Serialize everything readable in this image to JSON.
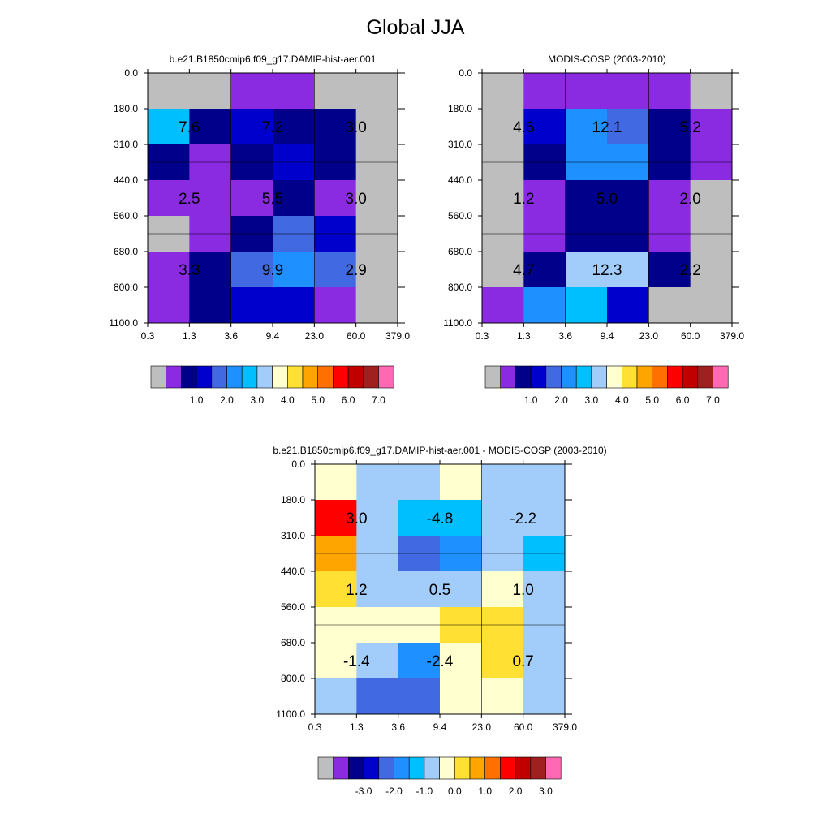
{
  "figure": {
    "title": "Global JJA"
  },
  "chart_data": [
    {
      "type": "heatmap",
      "title": "b.e21.B1850cmip6.f09_g17.DAMIP-hist-aer.001",
      "x_ticks": [
        "0.3",
        "1.3",
        "3.6",
        "9.4",
        "23.0",
        "60.0",
        "379.0"
      ],
      "y_ticks": [
        "0.0",
        "180.0",
        "310.0",
        "440.0",
        "560.0",
        "680.0",
        "800.0",
        "1100.0"
      ],
      "cell_color_index": [
        [
          0,
          0,
          1,
          1,
          0,
          0
        ],
        [
          6,
          2,
          3,
          2,
          2,
          0
        ],
        [
          2,
          1,
          2,
          3,
          2,
          0
        ],
        [
          1,
          1,
          1,
          2,
          1,
          0
        ],
        [
          0,
          1,
          2,
          4,
          3,
          0
        ],
        [
          1,
          2,
          4,
          5,
          4,
          0
        ],
        [
          1,
          2,
          3,
          3,
          1,
          0
        ]
      ],
      "block_labels": [
        "7.6",
        "7.2",
        "3.0",
        "2.5",
        "5.5",
        "3.0",
        "3.3",
        "9.9",
        "2.9"
      ],
      "colorbar": {
        "colors": [
          "#bebebe",
          "#8a2be2",
          "#00008b",
          "#0000cd",
          "#4169e1",
          "#1e90ff",
          "#00bfff",
          "#a2cdfa",
          "#ffffd0",
          "#ffe033",
          "#ffa500",
          "#ff7000",
          "#ff0000",
          "#c00000",
          "#a02020",
          "#ff69b4"
        ],
        "labels": [
          "1.0",
          "2.0",
          "3.0",
          "4.0",
          "5.0",
          "6.0",
          "7.0"
        ]
      }
    },
    {
      "type": "heatmap",
      "title": "MODIS-COSP (2003-2010)",
      "x_ticks": [
        "0.3",
        "1.3",
        "3.6",
        "9.4",
        "23.0",
        "60.0",
        "379.0"
      ],
      "y_ticks": [
        "0.0",
        "180.0",
        "310.0",
        "440.0",
        "560.0",
        "680.0",
        "800.0",
        "1100.0"
      ],
      "cell_color_index": [
        [
          0,
          1,
          1,
          1,
          1,
          0
        ],
        [
          0,
          3,
          5,
          4,
          2,
          1
        ],
        [
          0,
          2,
          5,
          5,
          2,
          1
        ],
        [
          0,
          1,
          2,
          2,
          1,
          0
        ],
        [
          0,
          1,
          2,
          2,
          1,
          0
        ],
        [
          0,
          2,
          7,
          7,
          2,
          0
        ],
        [
          1,
          5,
          6,
          3,
          0,
          0
        ]
      ],
      "block_labels": [
        "4.6",
        "12.1",
        "5.2",
        "1.2",
        "5.0",
        "2.0",
        "4.7",
        "12.3",
        "2.2"
      ],
      "colorbar": {
        "colors": [
          "#bebebe",
          "#8a2be2",
          "#00008b",
          "#0000cd",
          "#4169e1",
          "#1e90ff",
          "#00bfff",
          "#a2cdfa",
          "#ffffd0",
          "#ffe033",
          "#ffa500",
          "#ff7000",
          "#ff0000",
          "#c00000",
          "#a02020",
          "#ff69b4"
        ],
        "labels": [
          "1.0",
          "2.0",
          "3.0",
          "4.0",
          "5.0",
          "6.0",
          "7.0"
        ]
      }
    },
    {
      "type": "heatmap",
      "title": "b.e21.B1850cmip6.f09_g17.DAMIP-hist-aer.001 - MODIS-COSP (2003-2010)",
      "x_ticks": [
        "0.3",
        "1.3",
        "3.6",
        "9.4",
        "23.0",
        "60.0",
        "379.0"
      ],
      "y_ticks": [
        "0.0",
        "180.0",
        "310.0",
        "440.0",
        "560.0",
        "680.0",
        "800.0",
        "1100.0"
      ],
      "cell_color_index": [
        [
          8,
          7,
          7,
          8,
          7,
          7
        ],
        [
          12,
          7,
          6,
          6,
          7,
          7
        ],
        [
          10,
          7,
          4,
          5,
          7,
          6
        ],
        [
          9,
          7,
          7,
          7,
          8,
          7
        ],
        [
          8,
          8,
          8,
          9,
          9,
          7
        ],
        [
          8,
          7,
          5,
          8,
          9,
          7
        ],
        [
          7,
          4,
          4,
          8,
          8,
          7
        ]
      ],
      "block_labels": [
        "3.0",
        "-4.8",
        "-2.2",
        "1.2",
        "0.5",
        "1.0",
        "-1.4",
        "-2.4",
        "0.7"
      ],
      "colorbar": {
        "colors": [
          "#bebebe",
          "#8a2be2",
          "#00008b",
          "#0000cd",
          "#4169e1",
          "#1e90ff",
          "#00bfff",
          "#a2cdfa",
          "#ffffd0",
          "#ffe033",
          "#ffa500",
          "#ff7000",
          "#ff0000",
          "#c00000",
          "#a02020",
          "#ff69b4"
        ],
        "labels": [
          "-3.0",
          "-2.0",
          "-1.0",
          "0.0",
          "1.0",
          "2.0",
          "3.0"
        ]
      }
    }
  ]
}
